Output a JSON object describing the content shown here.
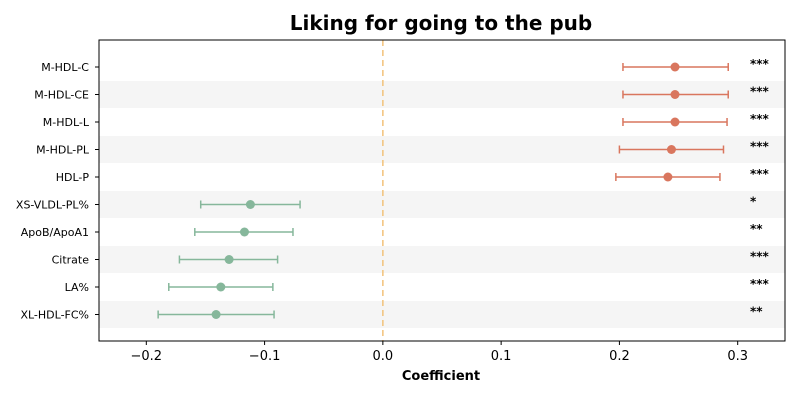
{
  "chart_data": {
    "type": "forest",
    "title": "Liking for going to the pub",
    "xlabel": "Coefficient",
    "ylabel": "",
    "xlim": [
      -0.24,
      0.34
    ],
    "xticks": [
      -0.2,
      -0.1,
      0.0,
      0.1,
      0.2,
      0.3
    ],
    "xtick_labels": [
      "−0.2",
      "−0.1",
      "0.0",
      "0.1",
      "0.2",
      "0.3"
    ],
    "reference_line": 0.0,
    "grid": false,
    "colors": {
      "positive": "#d9765e",
      "negative": "#86b79b",
      "reference": "#f2c27a",
      "band": "#f5f5f5"
    },
    "points": [
      {
        "label": "M-HDL-C",
        "estimate": 0.247,
        "ci_low": 0.203,
        "ci_high": 0.292,
        "significance": "***"
      },
      {
        "label": "M-HDL-CE",
        "estimate": 0.247,
        "ci_low": 0.203,
        "ci_high": 0.292,
        "significance": "***"
      },
      {
        "label": "M-HDL-L",
        "estimate": 0.247,
        "ci_low": 0.203,
        "ci_high": 0.291,
        "significance": "***"
      },
      {
        "label": "M-HDL-PL",
        "estimate": 0.244,
        "ci_low": 0.2,
        "ci_high": 0.288,
        "significance": "***"
      },
      {
        "label": "HDL-P",
        "estimate": 0.241,
        "ci_low": 0.197,
        "ci_high": 0.285,
        "significance": "***"
      },
      {
        "label": "XS-VLDL-PL%",
        "estimate": -0.112,
        "ci_low": -0.154,
        "ci_high": -0.07,
        "significance": "*"
      },
      {
        "label": "ApoB/ApoA1",
        "estimate": -0.117,
        "ci_low": -0.159,
        "ci_high": -0.076,
        "significance": "**"
      },
      {
        "label": "Citrate",
        "estimate": -0.13,
        "ci_low": -0.172,
        "ci_high": -0.089,
        "significance": "***"
      },
      {
        "label": "LA%",
        "estimate": -0.137,
        "ci_low": -0.181,
        "ci_high": -0.093,
        "significance": "***"
      },
      {
        "label": "XL-HDL-FC%",
        "estimate": -0.141,
        "ci_low": -0.19,
        "ci_high": -0.092,
        "significance": "**"
      }
    ]
  }
}
